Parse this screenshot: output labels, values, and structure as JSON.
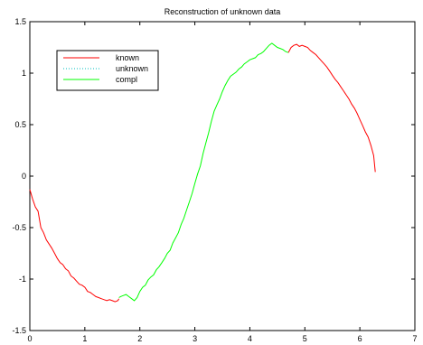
{
  "chart_data": {
    "type": "line",
    "title": "Reconstruction of unknown data",
    "xlabel": "",
    "ylabel": "",
    "xlim": [
      0,
      7
    ],
    "ylim": [
      -1.5,
      1.5
    ],
    "xticks": [
      0,
      1,
      2,
      3,
      4,
      5,
      6,
      7
    ],
    "yticks": [
      -1.5,
      -1,
      -0.5,
      0,
      0.5,
      1,
      1.5
    ],
    "grid": false,
    "legend_position": "top-left",
    "series": [
      {
        "name": "known",
        "color": "#ff0000",
        "style": "solid",
        "segments": [
          [
            [
              0.0,
              -0.13
            ],
            [
              0.05,
              -0.22
            ],
            [
              0.1,
              -0.3
            ],
            [
              0.15,
              -0.34
            ],
            [
              0.2,
              -0.5
            ],
            [
              0.25,
              -0.55
            ],
            [
              0.3,
              -0.62
            ],
            [
              0.35,
              -0.66
            ],
            [
              0.4,
              -0.7
            ],
            [
              0.45,
              -0.75
            ],
            [
              0.5,
              -0.8
            ],
            [
              0.55,
              -0.84
            ],
            [
              0.6,
              -0.86
            ],
            [
              0.65,
              -0.9
            ],
            [
              0.7,
              -0.92
            ],
            [
              0.75,
              -0.97
            ],
            [
              0.8,
              -0.99
            ],
            [
              0.85,
              -1.02
            ],
            [
              0.9,
              -1.05
            ],
            [
              0.95,
              -1.06
            ],
            [
              1.0,
              -1.08
            ],
            [
              1.05,
              -1.12
            ],
            [
              1.1,
              -1.13
            ],
            [
              1.15,
              -1.15
            ],
            [
              1.2,
              -1.17
            ],
            [
              1.25,
              -1.18
            ],
            [
              1.3,
              -1.19
            ],
            [
              1.35,
              -1.2
            ],
            [
              1.4,
              -1.21
            ],
            [
              1.45,
              -1.2
            ],
            [
              1.5,
              -1.21
            ],
            [
              1.55,
              -1.22
            ],
            [
              1.6,
              -1.21
            ],
            [
              1.62,
              -1.19
            ]
          ],
          [
            [
              4.7,
              1.2
            ],
            [
              4.75,
              1.25
            ],
            [
              4.8,
              1.27
            ],
            [
              4.85,
              1.28
            ],
            [
              4.9,
              1.26
            ],
            [
              4.95,
              1.27
            ],
            [
              5.0,
              1.26
            ],
            [
              5.05,
              1.25
            ],
            [
              5.1,
              1.22
            ],
            [
              5.15,
              1.2
            ],
            [
              5.2,
              1.18
            ],
            [
              5.25,
              1.15
            ],
            [
              5.3,
              1.12
            ],
            [
              5.35,
              1.09
            ],
            [
              5.4,
              1.06
            ],
            [
              5.45,
              1.02
            ],
            [
              5.5,
              0.98
            ],
            [
              5.55,
              0.94
            ],
            [
              5.6,
              0.91
            ],
            [
              5.65,
              0.87
            ],
            [
              5.7,
              0.83
            ],
            [
              5.75,
              0.79
            ],
            [
              5.8,
              0.75
            ],
            [
              5.85,
              0.7
            ],
            [
              5.9,
              0.66
            ],
            [
              5.95,
              0.61
            ],
            [
              6.0,
              0.55
            ],
            [
              6.05,
              0.49
            ],
            [
              6.1,
              0.43
            ],
            [
              6.15,
              0.38
            ],
            [
              6.2,
              0.3
            ],
            [
              6.25,
              0.2
            ],
            [
              6.28,
              0.04
            ]
          ]
        ]
      },
      {
        "name": "unknown",
        "color": "#00bfbf",
        "style": "dotted",
        "segments": []
      },
      {
        "name": "compl",
        "color": "#00ff00",
        "style": "solid",
        "segments": [
          [
            [
              1.62,
              -1.18
            ],
            [
              1.65,
              -1.17
            ],
            [
              1.7,
              -1.16
            ],
            [
              1.75,
              -1.15
            ],
            [
              1.8,
              -1.17
            ],
            [
              1.85,
              -1.19
            ],
            [
              1.9,
              -1.21
            ],
            [
              1.95,
              -1.18
            ],
            [
              2.0,
              -1.12
            ],
            [
              2.05,
              -1.08
            ],
            [
              2.1,
              -1.06
            ],
            [
              2.15,
              -1.01
            ],
            [
              2.2,
              -0.98
            ],
            [
              2.25,
              -0.96
            ],
            [
              2.3,
              -0.91
            ],
            [
              2.35,
              -0.88
            ],
            [
              2.4,
              -0.84
            ],
            [
              2.45,
              -0.8
            ],
            [
              2.5,
              -0.75
            ],
            [
              2.55,
              -0.72
            ],
            [
              2.6,
              -0.65
            ],
            [
              2.65,
              -0.6
            ],
            [
              2.7,
              -0.55
            ],
            [
              2.75,
              -0.47
            ],
            [
              2.8,
              -0.41
            ],
            [
              2.85,
              -0.33
            ],
            [
              2.9,
              -0.25
            ],
            [
              2.95,
              -0.17
            ],
            [
              3.0,
              -0.07
            ],
            [
              3.05,
              0.02
            ],
            [
              3.1,
              0.1
            ],
            [
              3.15,
              0.22
            ],
            [
              3.2,
              0.32
            ],
            [
              3.25,
              0.42
            ],
            [
              3.3,
              0.53
            ],
            [
              3.35,
              0.63
            ],
            [
              3.4,
              0.69
            ],
            [
              3.45,
              0.75
            ],
            [
              3.5,
              0.82
            ],
            [
              3.55,
              0.88
            ],
            [
              3.6,
              0.93
            ],
            [
              3.65,
              0.97
            ],
            [
              3.7,
              0.99
            ],
            [
              3.75,
              1.01
            ],
            [
              3.8,
              1.04
            ],
            [
              3.85,
              1.06
            ],
            [
              3.9,
              1.09
            ],
            [
              3.95,
              1.11
            ],
            [
              4.0,
              1.13
            ],
            [
              4.05,
              1.14
            ],
            [
              4.1,
              1.15
            ],
            [
              4.15,
              1.18
            ],
            [
              4.2,
              1.19
            ],
            [
              4.25,
              1.21
            ],
            [
              4.3,
              1.24
            ],
            [
              4.35,
              1.27
            ],
            [
              4.4,
              1.29
            ],
            [
              4.45,
              1.27
            ],
            [
              4.5,
              1.25
            ],
            [
              4.55,
              1.24
            ],
            [
              4.6,
              1.23
            ],
            [
              4.65,
              1.21
            ],
            [
              4.7,
              1.2
            ]
          ]
        ]
      }
    ]
  }
}
